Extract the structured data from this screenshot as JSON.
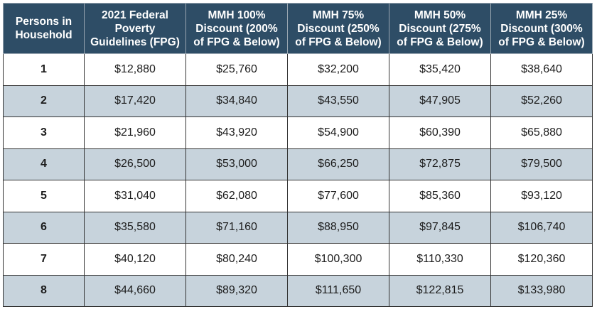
{
  "table": {
    "headers": [
      "Persons in\nHousehold",
      "2021 Federal\nPoverty\nGuidelines (FPG)",
      "MMH 100%\nDiscount (200%\nof FPG & Below)",
      "MMH 75%\nDiscount (250%\nof FPG & Below)",
      "MMH 50%\nDiscount (275%\nof FPG & Below)",
      "MMH 25%\nDiscount (300%\nof FPG & Below)"
    ],
    "rows": [
      [
        "1",
        "$12,880",
        "$25,760",
        "$32,200",
        "$35,420",
        "$38,640"
      ],
      [
        "2",
        "$17,420",
        "$34,840",
        "$43,550",
        "$47,905",
        "$52,260"
      ],
      [
        "3",
        "$21,960",
        "$43,920",
        "$54,900",
        "$60,390",
        "$65,880"
      ],
      [
        "4",
        "$26,500",
        "$53,000",
        "$66,250",
        "$72,875",
        "$79,500"
      ],
      [
        "5",
        "$31,040",
        "$62,080",
        "$77,600",
        "$85,360",
        "$93,120"
      ],
      [
        "6",
        "$35,580",
        "$71,160",
        "$88,950",
        "$97,845",
        "$106,740"
      ],
      [
        "7",
        "$40,120",
        "$80,240",
        "$100,300",
        "$110,330",
        "$120,360"
      ],
      [
        "8",
        "$44,660",
        "$89,320",
        "$111,650",
        "$122,815",
        "$133,980"
      ]
    ]
  },
  "colors": {
    "header_bg": "#2e4d66",
    "header_text": "#ffffff",
    "row_alt_bg": "#c7d3dc",
    "row_bg": "#ffffff",
    "border": "#333333"
  }
}
